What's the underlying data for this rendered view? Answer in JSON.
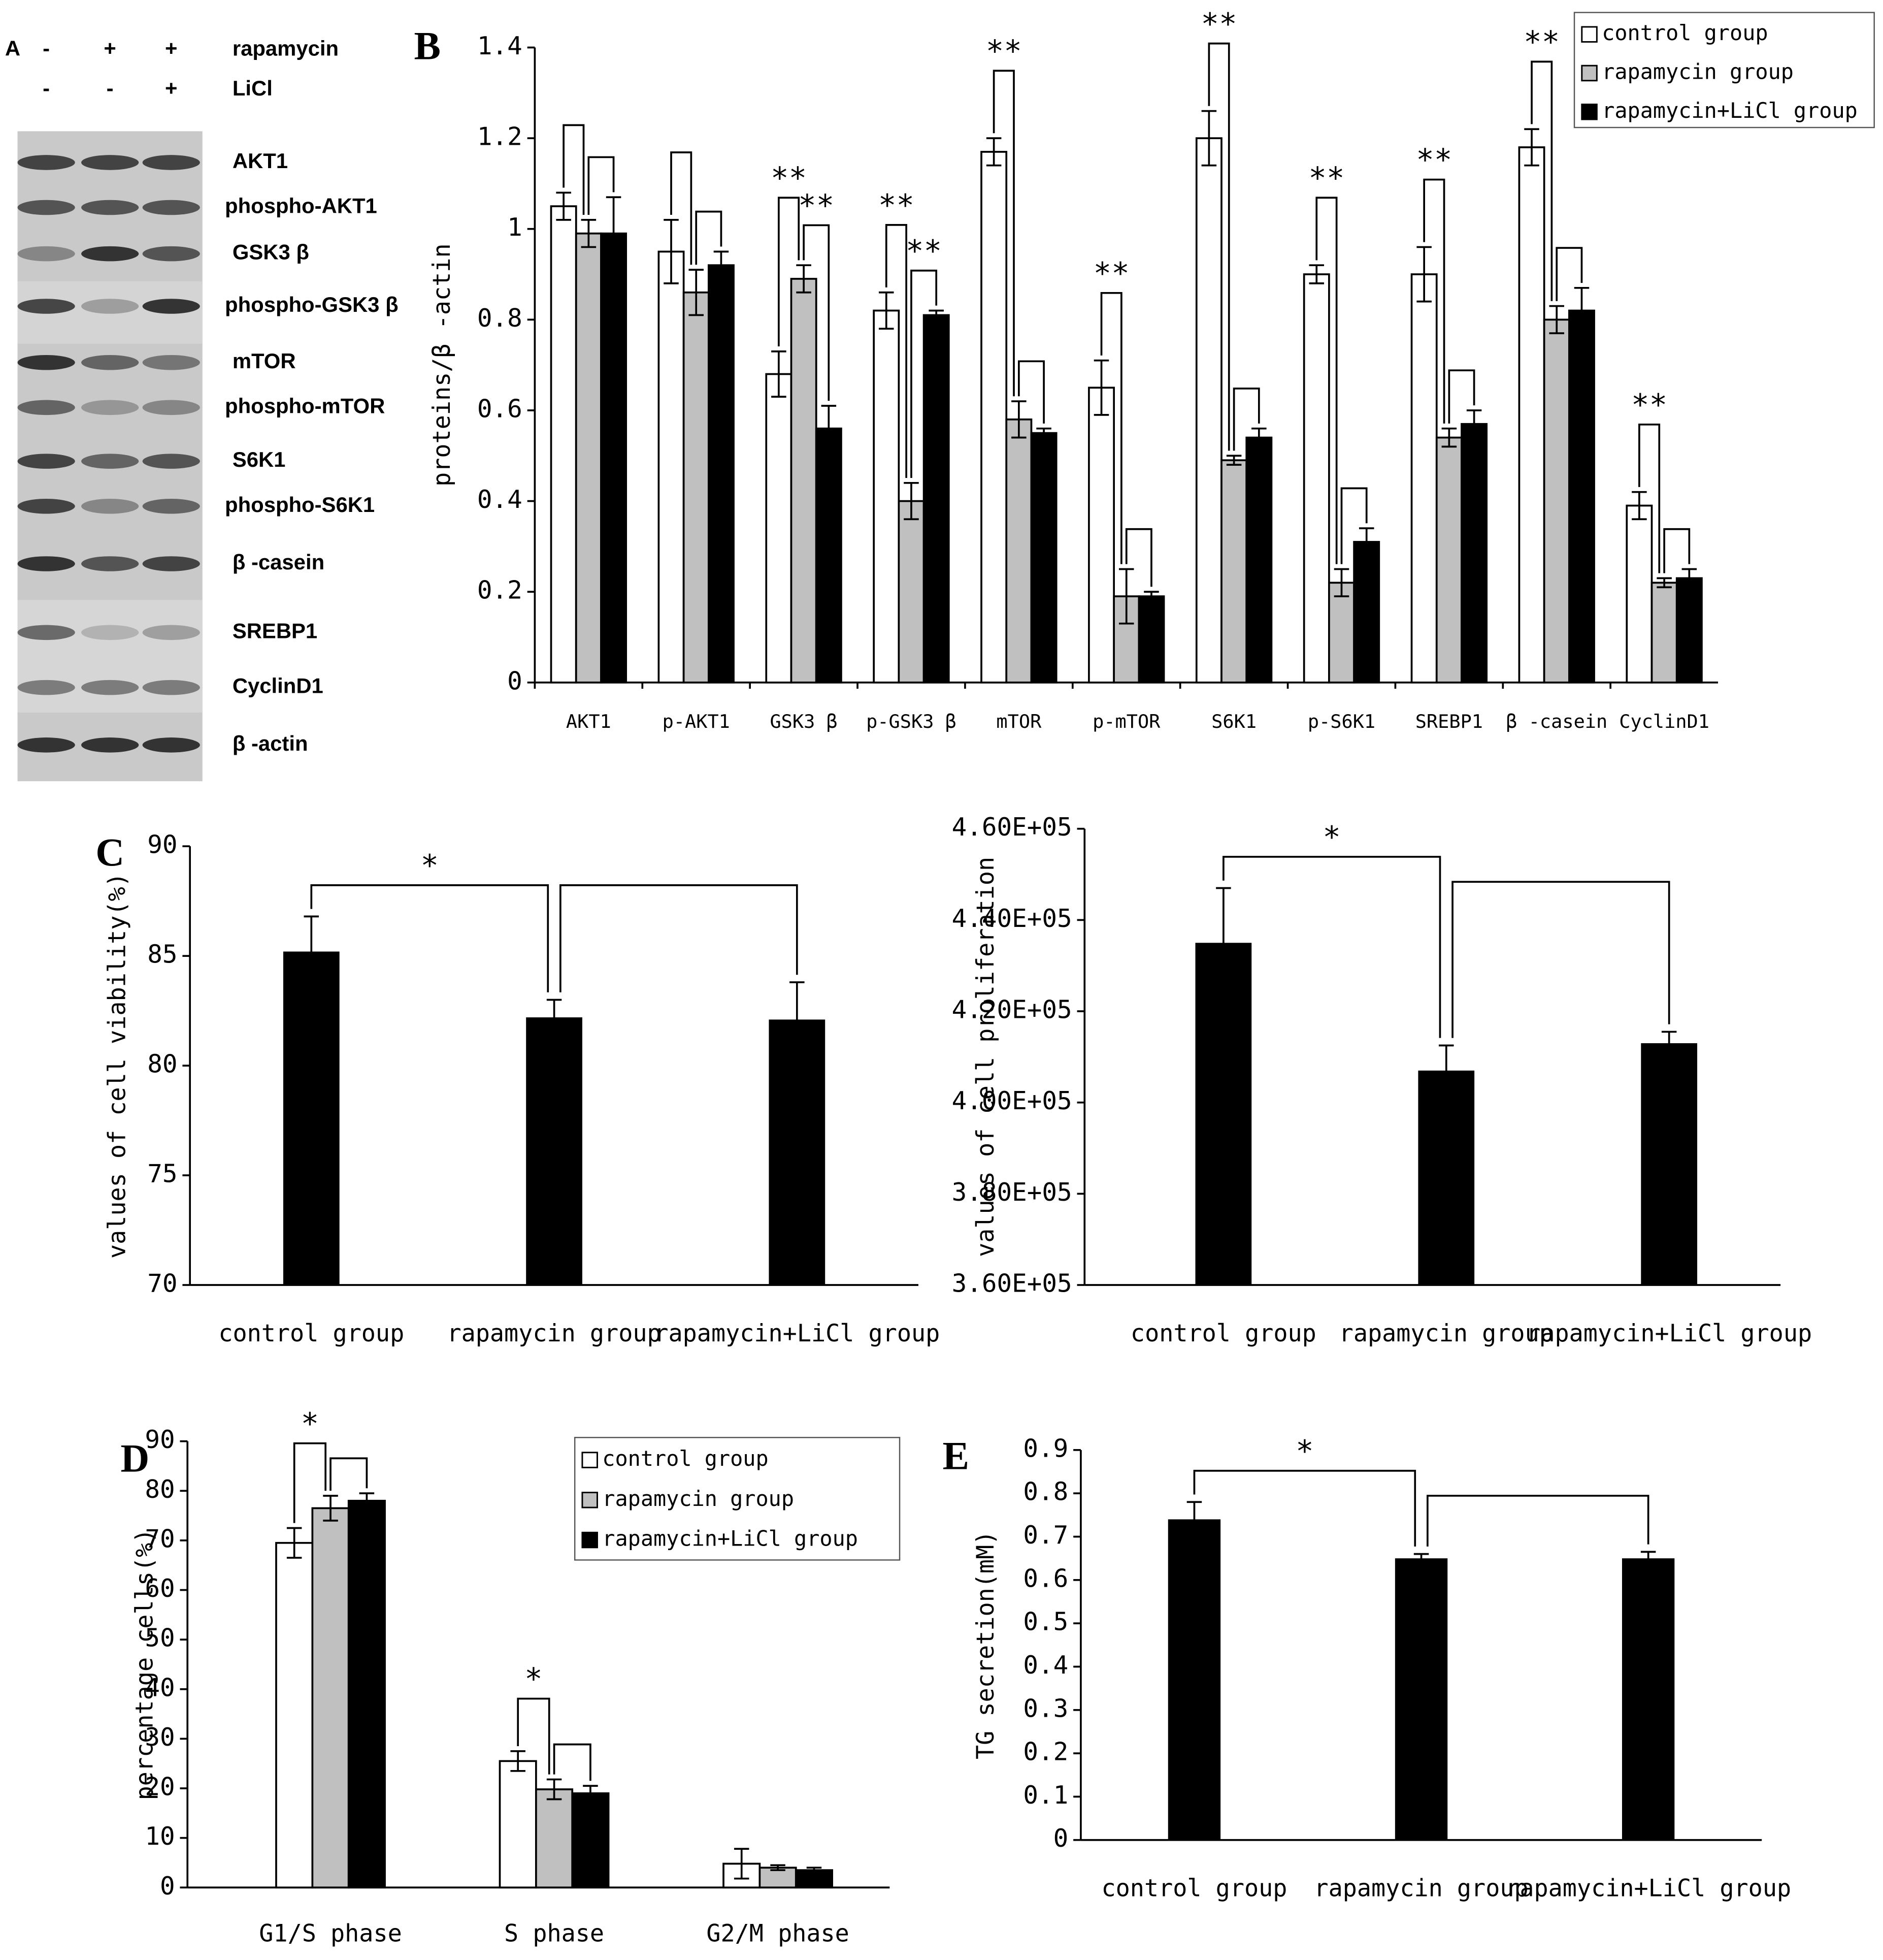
{
  "blot": {
    "panel": "A",
    "treatments": [
      {
        "label": "rapamycin",
        "signs": [
          "-",
          "+",
          "+"
        ]
      },
      {
        "label": "LiCl",
        "signs": [
          "-",
          "-",
          "+"
        ]
      }
    ],
    "proteins": [
      "AKT1",
      "phospho-AKT1",
      "GSK3 β",
      "phospho-GSK3 β",
      "mTOR",
      "phospho-mTOR",
      "S6K1",
      "phospho-S6K1",
      "β -casein",
      "SREBP1",
      "CyclinD1",
      "β -actin"
    ]
  },
  "chart_data": [
    {
      "type": "grouped-bar",
      "panel": "B",
      "ylabel": "proteins/β -actin",
      "categories": [
        "AKT1",
        "p-AKT1",
        "GSK3 β",
        "p-GSK3 β",
        "mTOR",
        "p-mTOR",
        "S6K1",
        "p-S6K1",
        "SREBP1",
        "β -casein",
        "CyclinD1"
      ],
      "series": [
        {
          "name": "control group",
          "color": "#ffffff",
          "values": [
            1.05,
            0.95,
            0.68,
            0.82,
            1.17,
            0.65,
            1.2,
            0.9,
            0.9,
            1.18,
            0.39
          ],
          "errors": [
            0.03,
            0.07,
            0.05,
            0.04,
            0.03,
            0.06,
            0.06,
            0.02,
            0.06,
            0.04,
            0.03
          ]
        },
        {
          "name": "rapamycin group",
          "color": "#c0c0c0",
          "values": [
            0.99,
            0.86,
            0.89,
            0.4,
            0.58,
            0.19,
            0.49,
            0.22,
            0.54,
            0.8,
            0.22
          ],
          "errors": [
            0.03,
            0.05,
            0.03,
            0.04,
            0.04,
            0.06,
            0.01,
            0.03,
            0.02,
            0.03,
            0.01
          ]
        },
        {
          "name": "rapamycin+LiCl group",
          "color": "#000000",
          "values": [
            0.99,
            0.92,
            0.56,
            0.81,
            0.55,
            0.19,
            0.54,
            0.31,
            0.57,
            0.82,
            0.23
          ],
          "errors": [
            0.08,
            0.03,
            0.05,
            0.01,
            0.01,
            0.01,
            0.02,
            0.03,
            0.03,
            0.05,
            0.02
          ]
        }
      ],
      "ylim": [
        0,
        1.4
      ],
      "yticks": [
        0,
        0.2,
        0.4,
        0.6,
        0.8,
        1,
        1.2,
        1.4
      ],
      "legend": "top-right",
      "brackets": [
        {
          "from": 0,
          "to": 1,
          "marks": [
            null,
            null,
            "**",
            "**",
            "**",
            "**",
            "**",
            "**",
            "**",
            "**",
            "**"
          ],
          "shown": [
            true,
            true,
            true,
            true,
            true,
            true,
            true,
            true,
            true,
            true,
            true
          ]
        },
        {
          "from": 1,
          "to": 2,
          "marks": [
            null,
            null,
            "**",
            "**",
            null,
            null,
            null,
            null,
            null,
            null,
            null
          ],
          "shown": [
            true,
            true,
            true,
            true,
            true,
            true,
            true,
            true,
            true,
            true,
            true
          ]
        }
      ]
    },
    {
      "type": "bar",
      "panel": "C",
      "ylabel": "values of cell viability(%)",
      "categories": [
        "control group",
        "rapamycin group",
        "rapamycin+LiCl group"
      ],
      "values": [
        85.2,
        82.2,
        82.1
      ],
      "errors": [
        1.6,
        0.8,
        1.7
      ],
      "color": "#000000",
      "ylim": [
        70,
        90
      ],
      "yticks": [
        70,
        75,
        80,
        85,
        90
      ],
      "brackets": [
        {
          "from": 0,
          "to": 1,
          "mark": "*"
        },
        {
          "from": 1,
          "to": 2
        }
      ]
    },
    {
      "type": "bar",
      "ylabel": "values of cell proliferation",
      "categories": [
        "control group",
        "rapamycin group",
        "rapamycin+LiCl group"
      ],
      "values": [
        435000,
        407000,
        413000
      ],
      "errors": [
        12000,
        5500,
        2500
      ],
      "color": "#000000",
      "ylim": [
        360000,
        460000
      ],
      "yticks": [
        {
          "value": 360000,
          "label": "3.60E+05"
        },
        {
          "value": 380000,
          "label": "3.80E+05"
        },
        {
          "value": 400000,
          "label": "4.00E+05"
        },
        {
          "value": 420000,
          "label": "4.20E+05"
        },
        {
          "value": 440000,
          "label": "4.40E+05"
        },
        {
          "value": 460000,
          "label": "4.60E+05"
        }
      ],
      "brackets": [
        {
          "from": 0,
          "to": 1,
          "mark": "*"
        },
        {
          "from": 1,
          "to": 2
        }
      ]
    },
    {
      "type": "grouped-bar",
      "panel": "D",
      "ylabel": "percentage cells(%)",
      "categories": [
        "G1/S phase",
        "S phase",
        "G2/M phase"
      ],
      "series": [
        {
          "name": "control group",
          "color": "#ffffff",
          "values": [
            69.5,
            25.5,
            4.8
          ],
          "errors": [
            3,
            2,
            3
          ]
        },
        {
          "name": "rapamycin group",
          "color": "#c0c0c0",
          "values": [
            76.5,
            19.8,
            4
          ],
          "errors": [
            2.5,
            2,
            0.5
          ]
        },
        {
          "name": "rapamycin+LiCl group",
          "color": "#000000",
          "values": [
            78,
            19,
            3.5
          ],
          "errors": [
            1.5,
            1.5,
            0.5
          ]
        }
      ],
      "ylim": [
        0,
        90
      ],
      "yticks": [
        0,
        10,
        20,
        30,
        40,
        50,
        60,
        70,
        80,
        90
      ],
      "legend": "top-right",
      "brackets": [
        {
          "from": 0,
          "to": 1,
          "marks": [
            "*",
            "*",
            null
          ],
          "shown": [
            true,
            true,
            false
          ]
        },
        {
          "from": 1,
          "to": 2,
          "marks": [
            null,
            null,
            null
          ],
          "shown": [
            true,
            true,
            false
          ]
        }
      ]
    },
    {
      "type": "bar",
      "panel": "E",
      "ylabel": "TG secretion(mM)",
      "categories": [
        "control group",
        "rapamycin group",
        "rapamycin+LiCl group"
      ],
      "values": [
        0.74,
        0.65,
        0.65
      ],
      "errors": [
        0.04,
        0.01,
        0.015
      ],
      "color": "#000000",
      "ylim": [
        0,
        0.9
      ],
      "yticks": [
        0,
        0.1,
        0.2,
        0.3,
        0.4,
        0.5,
        0.6,
        0.7,
        0.8,
        0.9
      ],
      "brackets": [
        {
          "from": 0,
          "to": 1,
          "mark": "*"
        },
        {
          "from": 1,
          "to": 2
        }
      ]
    }
  ]
}
